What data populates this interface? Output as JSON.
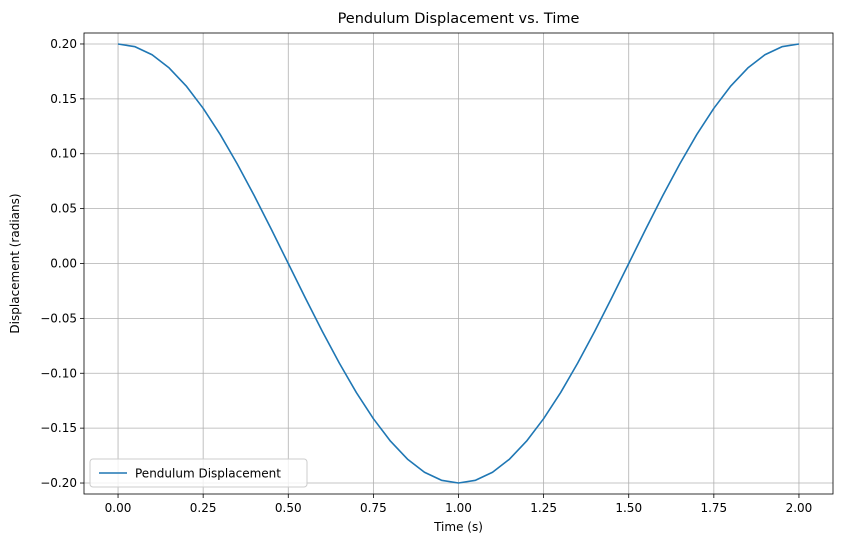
{
  "chart_data": {
    "type": "line",
    "title": "Pendulum Displacement vs. Time",
    "xlabel": "Time (s)",
    "ylabel": "Displacement (radians)",
    "xlim": [
      -0.1,
      2.1
    ],
    "ylim": [
      -0.21,
      0.21
    ],
    "grid": true,
    "legend_position": "lower-left",
    "x_ticks": [
      0.0,
      0.25,
      0.5,
      0.75,
      1.0,
      1.25,
      1.5,
      1.75,
      2.0
    ],
    "x_tick_labels": [
      "0.00",
      "0.25",
      "0.50",
      "0.75",
      "1.00",
      "1.25",
      "1.50",
      "1.75",
      "2.00"
    ],
    "y_ticks": [
      -0.2,
      -0.15,
      -0.1,
      -0.05,
      0.0,
      0.05,
      0.1,
      0.15,
      0.2
    ],
    "y_tick_labels": [
      "−0.20",
      "−0.15",
      "−0.10",
      "−0.05",
      "0.00",
      "0.05",
      "0.10",
      "0.15",
      "0.20"
    ],
    "series": [
      {
        "name": "Pendulum Displacement",
        "color": "#1f77b4",
        "x": [
          0.0,
          0.05,
          0.1,
          0.15,
          0.2,
          0.25,
          0.3,
          0.35,
          0.4,
          0.45,
          0.5,
          0.55,
          0.6,
          0.65,
          0.7,
          0.75,
          0.8,
          0.85,
          0.9,
          0.95,
          1.0,
          1.05,
          1.1,
          1.15,
          1.2,
          1.25,
          1.3,
          1.35,
          1.4,
          1.45,
          1.5,
          1.55,
          1.6,
          1.65,
          1.7,
          1.75,
          1.8,
          1.85,
          1.9,
          1.95,
          2.0
        ],
        "y": [
          0.2,
          0.1975,
          0.1902,
          0.1782,
          0.1618,
          0.1414,
          0.1176,
          0.0908,
          0.0618,
          0.0313,
          0.0,
          -0.0313,
          -0.0618,
          -0.0908,
          -0.1176,
          -0.1414,
          -0.1618,
          -0.1782,
          -0.1902,
          -0.1975,
          -0.2,
          -0.1975,
          -0.1902,
          -0.1782,
          -0.1618,
          -0.1414,
          -0.1176,
          -0.0908,
          -0.0618,
          -0.0313,
          0.0,
          0.0313,
          0.0618,
          0.0908,
          0.1176,
          0.1414,
          0.1618,
          0.1782,
          0.1902,
          0.1975,
          0.2
        ]
      }
    ]
  }
}
